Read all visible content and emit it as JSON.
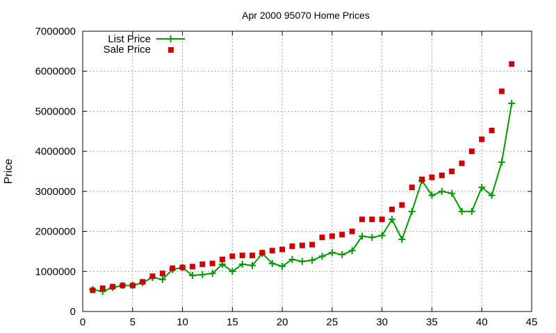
{
  "chart_data": {
    "type": "line",
    "title": "Apr 2000 95070 Home Prices",
    "xlabel": "",
    "ylabel": "Price",
    "xlim": [
      0,
      45
    ],
    "ylim": [
      0,
      7000000
    ],
    "x_ticks": [
      0,
      5,
      10,
      15,
      20,
      25,
      30,
      35,
      40,
      45
    ],
    "y_ticks": [
      0,
      1000000,
      2000000,
      3000000,
      4000000,
      5000000,
      6000000,
      7000000
    ],
    "grid": true,
    "legend_position": "top-left",
    "x": [
      1,
      2,
      3,
      4,
      5,
      6,
      7,
      8,
      9,
      10,
      11,
      12,
      13,
      14,
      15,
      16,
      17,
      18,
      19,
      20,
      21,
      22,
      23,
      24,
      25,
      26,
      27,
      28,
      29,
      30,
      31,
      32,
      33,
      34,
      35,
      36,
      37,
      38,
      39,
      40,
      41,
      42,
      43
    ],
    "series": [
      {
        "name": "List Price",
        "style": "linespoints",
        "color": "#009900",
        "marker": "+",
        "values": [
          550000,
          500000,
          600000,
          650000,
          650000,
          720000,
          850000,
          800000,
          1050000,
          1100000,
          900000,
          920000,
          950000,
          1180000,
          1000000,
          1180000,
          1150000,
          1450000,
          1200000,
          1130000,
          1300000,
          1250000,
          1280000,
          1380000,
          1470000,
          1420000,
          1520000,
          1880000,
          1850000,
          1900000,
          2300000,
          1800000,
          2500000,
          3270000,
          2900000,
          3000000,
          2950000,
          2500000,
          2500000,
          3100000,
          2900000,
          3730000,
          5200000
        ]
      },
      {
        "name": "Sale Price",
        "style": "points",
        "color": "#cc0000",
        "marker": "square",
        "values": [
          530000,
          580000,
          620000,
          650000,
          650000,
          740000,
          880000,
          950000,
          1080000,
          1100000,
          1120000,
          1180000,
          1200000,
          1300000,
          1380000,
          1400000,
          1400000,
          1470000,
          1520000,
          1550000,
          1630000,
          1650000,
          1670000,
          1850000,
          1880000,
          1920000,
          2000000,
          2300000,
          2300000,
          2300000,
          2550000,
          2660000,
          3100000,
          3300000,
          3350000,
          3400000,
          3500000,
          3700000,
          4000000,
          4300000,
          4520000,
          5500000,
          6180000
        ]
      }
    ]
  }
}
